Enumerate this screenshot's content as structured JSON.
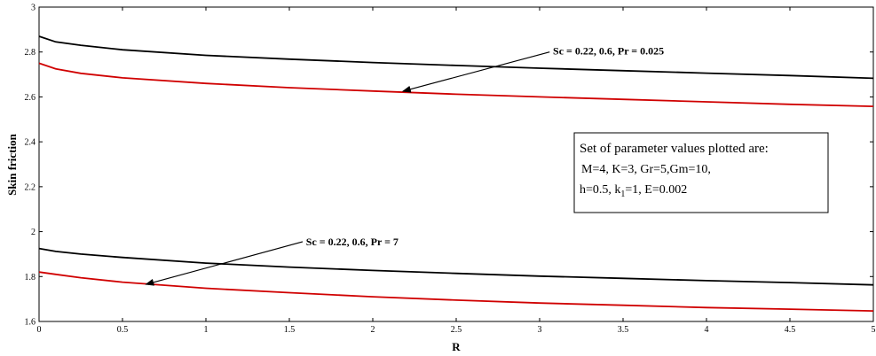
{
  "chart_data": {
    "type": "line",
    "xlabel": "R",
    "ylabel": "Skin friction",
    "xlim": [
      0,
      5
    ],
    "ylim": [
      1.6,
      3.0
    ],
    "xticks": [
      "0",
      "0.5",
      "1",
      "1.5",
      "2",
      "2.5",
      "3",
      "3.5",
      "4",
      "4.5",
      "5"
    ],
    "yticks": [
      "1.6",
      "1.8",
      "2",
      "2.2",
      "2.4",
      "2.6",
      "2.8",
      "3"
    ],
    "grid": false,
    "series": [
      {
        "color": "#000000",
        "x": [
          0,
          0.1,
          0.25,
          0.5,
          1,
          1.5,
          2,
          2.5,
          3,
          3.5,
          4,
          4.5,
          5
        ],
        "y": [
          2.87,
          2.845,
          2.83,
          2.81,
          2.785,
          2.768,
          2.753,
          2.74,
          2.728,
          2.717,
          2.706,
          2.695,
          2.683
        ]
      },
      {
        "color": "#d00000",
        "x": [
          0,
          0.1,
          0.25,
          0.5,
          1,
          1.5,
          2,
          2.5,
          3,
          3.5,
          4,
          4.5,
          5
        ],
        "y": [
          2.75,
          2.725,
          2.705,
          2.685,
          2.66,
          2.641,
          2.626,
          2.612,
          2.6,
          2.589,
          2.578,
          2.567,
          2.558
        ]
      },
      {
        "color": "#000000",
        "x": [
          0,
          0.1,
          0.25,
          0.5,
          1,
          1.5,
          2,
          2.5,
          3,
          3.5,
          4,
          4.5,
          5
        ],
        "y": [
          1.925,
          1.912,
          1.9,
          1.885,
          1.86,
          1.842,
          1.827,
          1.814,
          1.802,
          1.792,
          1.782,
          1.773,
          1.763
        ]
      },
      {
        "color": "#d00000",
        "x": [
          0,
          0.1,
          0.25,
          0.5,
          1,
          1.5,
          2,
          2.5,
          3,
          3.5,
          4,
          4.5,
          5
        ],
        "y": [
          1.82,
          1.81,
          1.795,
          1.775,
          1.748,
          1.728,
          1.71,
          1.695,
          1.682,
          1.672,
          1.662,
          1.655,
          1.647
        ]
      }
    ],
    "annotations": [
      {
        "text": "Sc = 0.22, 0.6, Pr = 0.025",
        "text_x": 3.08,
        "text_y": 2.805,
        "arrow_from": [
          3.06,
          2.8
        ],
        "arrow_to": [
          2.18,
          2.625
        ]
      },
      {
        "text": "Sc = 0.22, 0.6, Pr = 7",
        "text_x": 1.6,
        "text_y": 1.955,
        "arrow_from": [
          1.58,
          1.955
        ],
        "arrow_to": [
          0.64,
          1.765
        ]
      }
    ],
    "legend_box": {
      "title": "Set of parameter values plotted are:",
      "line1": "M=4, K=3, Gr=5,Gm=10,",
      "line2_prefix": "h=0.5,  k",
      "line2_sub": "1",
      "line2_suffix": "=1, E=0.002"
    }
  }
}
